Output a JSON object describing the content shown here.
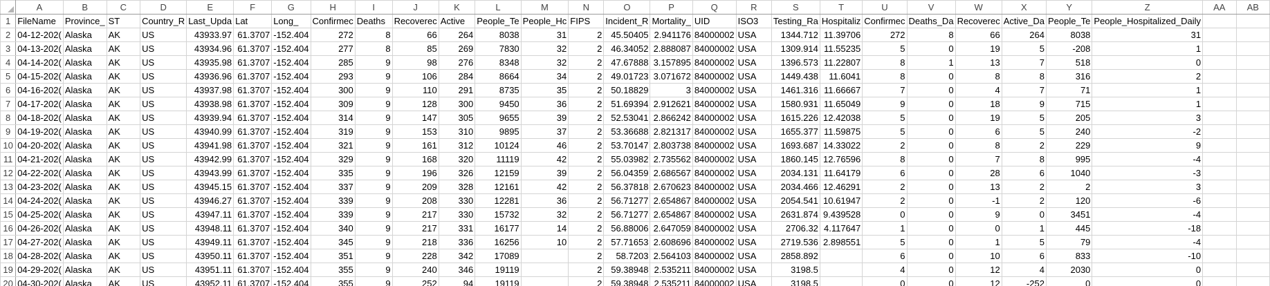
{
  "sheet": {
    "column_letters": [
      "A",
      "B",
      "C",
      "D",
      "E",
      "F",
      "G",
      "H",
      "I",
      "J",
      "K",
      "L",
      "M",
      "N",
      "O",
      "P",
      "Q",
      "R",
      "S",
      "T",
      "U",
      "V",
      "W",
      "X",
      "Y",
      "Z",
      "AA",
      "AB"
    ],
    "rows": [
      {
        "n": "1",
        "cells": [
          "FileName",
          "Province_",
          "ST",
          "Country_R",
          "Last_Upda",
          "Lat",
          "Long_",
          "Confirmec",
          "Deaths",
          "Recoverec",
          "Active",
          "People_Te",
          "People_Hc",
          "FIPS",
          "Incident_R",
          "Mortality_",
          "UID",
          "ISO3",
          "Testing_Ra",
          "Hospitaliz",
          "Confirmec",
          "Deaths_Da",
          "Recoverec",
          "Active_Da",
          "People_Te",
          "People_Hospitalized_Daily",
          "",
          ""
        ]
      },
      {
        "n": "2",
        "cells": [
          "04-12-202(",
          "Alaska",
          "AK",
          "US",
          "43933.97",
          "61.3707",
          "-152.404",
          "272",
          "8",
          "66",
          "264",
          "8038",
          "31",
          "2",
          "45.50405",
          "2.941176",
          "84000002",
          "USA",
          "1344.712",
          "11.39706",
          "272",
          "8",
          "66",
          "264",
          "8038",
          "31",
          "",
          ""
        ]
      },
      {
        "n": "3",
        "cells": [
          "04-13-202(",
          "Alaska",
          "AK",
          "US",
          "43934.96",
          "61.3707",
          "-152.404",
          "277",
          "8",
          "85",
          "269",
          "7830",
          "32",
          "2",
          "46.34052",
          "2.888087",
          "84000002",
          "USA",
          "1309.914",
          "11.55235",
          "5",
          "0",
          "19",
          "5",
          "-208",
          "1",
          "",
          ""
        ]
      },
      {
        "n": "4",
        "cells": [
          "04-14-202(",
          "Alaska",
          "AK",
          "US",
          "43935.98",
          "61.3707",
          "-152.404",
          "285",
          "9",
          "98",
          "276",
          "8348",
          "32",
          "2",
          "47.67888",
          "3.157895",
          "84000002",
          "USA",
          "1396.573",
          "11.22807",
          "8",
          "1",
          "13",
          "7",
          "518",
          "0",
          "",
          ""
        ]
      },
      {
        "n": "5",
        "cells": [
          "04-15-202(",
          "Alaska",
          "AK",
          "US",
          "43936.96",
          "61.3707",
          "-152.404",
          "293",
          "9",
          "106",
          "284",
          "8664",
          "34",
          "2",
          "49.01723",
          "3.071672",
          "84000002",
          "USA",
          "1449.438",
          "11.6041",
          "8",
          "0",
          "8",
          "8",
          "316",
          "2",
          "",
          ""
        ]
      },
      {
        "n": "6",
        "cells": [
          "04-16-202(",
          "Alaska",
          "AK",
          "US",
          "43937.98",
          "61.3707",
          "-152.404",
          "300",
          "9",
          "110",
          "291",
          "8735",
          "35",
          "2",
          "50.18829",
          "3",
          "84000002",
          "USA",
          "1461.316",
          "11.66667",
          "7",
          "0",
          "4",
          "7",
          "71",
          "1",
          "",
          ""
        ]
      },
      {
        "n": "7",
        "cells": [
          "04-17-202(",
          "Alaska",
          "AK",
          "US",
          "43938.98",
          "61.3707",
          "-152.404",
          "309",
          "9",
          "128",
          "300",
          "9450",
          "36",
          "2",
          "51.69394",
          "2.912621",
          "84000002",
          "USA",
          "1580.931",
          "11.65049",
          "9",
          "0",
          "18",
          "9",
          "715",
          "1",
          "",
          ""
        ]
      },
      {
        "n": "8",
        "cells": [
          "04-18-202(",
          "Alaska",
          "AK",
          "US",
          "43939.94",
          "61.3707",
          "-152.404",
          "314",
          "9",
          "147",
          "305",
          "9655",
          "39",
          "2",
          "52.53041",
          "2.866242",
          "84000002",
          "USA",
          "1615.226",
          "12.42038",
          "5",
          "0",
          "19",
          "5",
          "205",
          "3",
          "",
          ""
        ]
      },
      {
        "n": "9",
        "cells": [
          "04-19-202(",
          "Alaska",
          "AK",
          "US",
          "43940.99",
          "61.3707",
          "-152.404",
          "319",
          "9",
          "153",
          "310",
          "9895",
          "37",
          "2",
          "53.36688",
          "2.821317",
          "84000002",
          "USA",
          "1655.377",
          "11.59875",
          "5",
          "0",
          "6",
          "5",
          "240",
          "-2",
          "",
          ""
        ]
      },
      {
        "n": "10",
        "cells": [
          "04-20-202(",
          "Alaska",
          "AK",
          "US",
          "43941.98",
          "61.3707",
          "-152.404",
          "321",
          "9",
          "161",
          "312",
          "10124",
          "46",
          "2",
          "53.70147",
          "2.803738",
          "84000002",
          "USA",
          "1693.687",
          "14.33022",
          "2",
          "0",
          "8",
          "2",
          "229",
          "9",
          "",
          ""
        ]
      },
      {
        "n": "11",
        "cells": [
          "04-21-202(",
          "Alaska",
          "AK",
          "US",
          "43942.99",
          "61.3707",
          "-152.404",
          "329",
          "9",
          "168",
          "320",
          "11119",
          "42",
          "2",
          "55.03982",
          "2.735562",
          "84000002",
          "USA",
          "1860.145",
          "12.76596",
          "8",
          "0",
          "7",
          "8",
          "995",
          "-4",
          "",
          ""
        ]
      },
      {
        "n": "12",
        "cells": [
          "04-22-202(",
          "Alaska",
          "AK",
          "US",
          "43943.99",
          "61.3707",
          "-152.404",
          "335",
          "9",
          "196",
          "326",
          "12159",
          "39",
          "2",
          "56.04359",
          "2.686567",
          "84000002",
          "USA",
          "2034.131",
          "11.64179",
          "6",
          "0",
          "28",
          "6",
          "1040",
          "-3",
          "",
          ""
        ]
      },
      {
        "n": "13",
        "cells": [
          "04-23-202(",
          "Alaska",
          "AK",
          "US",
          "43945.15",
          "61.3707",
          "-152.404",
          "337",
          "9",
          "209",
          "328",
          "12161",
          "42",
          "2",
          "56.37818",
          "2.670623",
          "84000002",
          "USA",
          "2034.466",
          "12.46291",
          "2",
          "0",
          "13",
          "2",
          "2",
          "3",
          "",
          ""
        ]
      },
      {
        "n": "14",
        "cells": [
          "04-24-202(",
          "Alaska",
          "AK",
          "US",
          "43946.27",
          "61.3707",
          "-152.404",
          "339",
          "9",
          "208",
          "330",
          "12281",
          "36",
          "2",
          "56.71277",
          "2.654867",
          "84000002",
          "USA",
          "2054.541",
          "10.61947",
          "2",
          "0",
          "-1",
          "2",
          "120",
          "-6",
          "",
          ""
        ]
      },
      {
        "n": "15",
        "cells": [
          "04-25-202(",
          "Alaska",
          "AK",
          "US",
          "43947.11",
          "61.3707",
          "-152.404",
          "339",
          "9",
          "217",
          "330",
          "15732",
          "32",
          "2",
          "56.71277",
          "2.654867",
          "84000002",
          "USA",
          "2631.874",
          "9.439528",
          "0",
          "0",
          "9",
          "0",
          "3451",
          "-4",
          "",
          ""
        ]
      },
      {
        "n": "16",
        "cells": [
          "04-26-202(",
          "Alaska",
          "AK",
          "US",
          "43948.11",
          "61.3707",
          "-152.404",
          "340",
          "9",
          "217",
          "331",
          "16177",
          "14",
          "2",
          "56.88006",
          "2.647059",
          "84000002",
          "USA",
          "2706.32",
          "4.117647",
          "1",
          "0",
          "0",
          "1",
          "445",
          "-18",
          "",
          ""
        ]
      },
      {
        "n": "17",
        "cells": [
          "04-27-202(",
          "Alaska",
          "AK",
          "US",
          "43949.11",
          "61.3707",
          "-152.404",
          "345",
          "9",
          "218",
          "336",
          "16256",
          "10",
          "2",
          "57.71653",
          "2.608696",
          "84000002",
          "USA",
          "2719.536",
          "2.898551",
          "5",
          "0",
          "1",
          "5",
          "79",
          "-4",
          "",
          ""
        ]
      },
      {
        "n": "18",
        "cells": [
          "04-28-202(",
          "Alaska",
          "AK",
          "US",
          "43950.11",
          "61.3707",
          "-152.404",
          "351",
          "9",
          "228",
          "342",
          "17089",
          "",
          "2",
          "58.7203",
          "2.564103",
          "84000002",
          "USA",
          "2858.892",
          "",
          "6",
          "0",
          "10",
          "6",
          "833",
          "-10",
          "",
          ""
        ]
      },
      {
        "n": "19",
        "cells": [
          "04-29-202(",
          "Alaska",
          "AK",
          "US",
          "43951.11",
          "61.3707",
          "-152.404",
          "355",
          "9",
          "240",
          "346",
          "19119",
          "",
          "2",
          "59.38948",
          "2.535211",
          "84000002",
          "USA",
          "3198.5",
          "",
          "4",
          "0",
          "12",
          "4",
          "2030",
          "0",
          "",
          ""
        ]
      },
      {
        "n": "20",
        "cells": [
          "04-30-202(",
          "Alaska",
          "AK",
          "US",
          "43952.11",
          "61.3707",
          "-152.404",
          "355",
          "9",
          "252",
          "94",
          "19119",
          "",
          "2",
          "59.38948",
          "2.535211",
          "84000002",
          "USA",
          "3198.5",
          "",
          "0",
          "0",
          "12",
          "-252",
          "0",
          "0",
          "",
          ""
        ]
      }
    ]
  }
}
